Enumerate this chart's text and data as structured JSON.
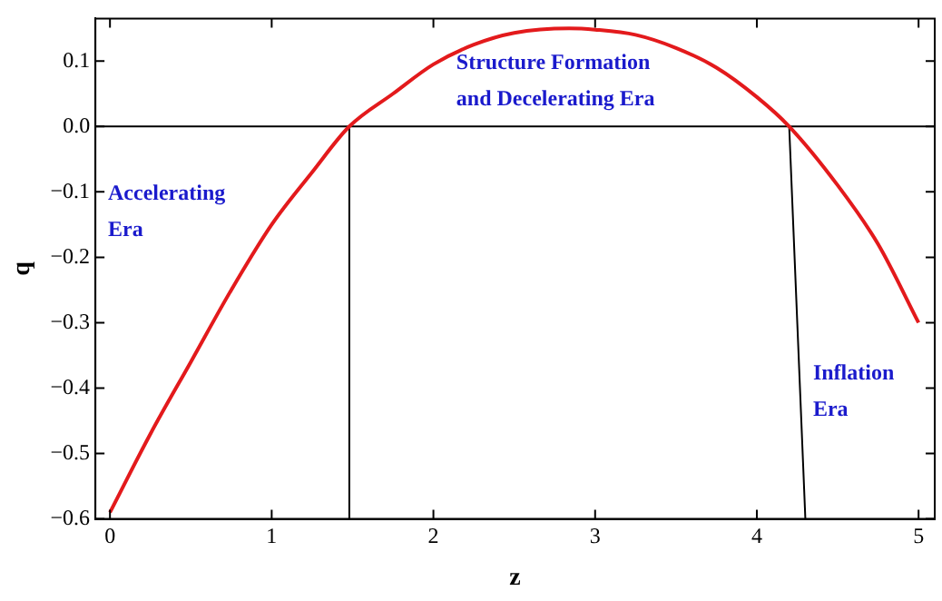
{
  "chart_data": {
    "type": "line",
    "xlabel": "z",
    "ylabel": "q",
    "xlim": [
      -0.09,
      5.1
    ],
    "ylim": [
      -0.6,
      0.165
    ],
    "xticks": [
      0,
      1,
      2,
      3,
      4,
      5
    ],
    "yticks": [
      {
        "value": -0.6,
        "label": "−0.6"
      },
      {
        "value": -0.5,
        "label": "−0.5"
      },
      {
        "value": -0.4,
        "label": "−0.4"
      },
      {
        "value": -0.3,
        "label": "−0.3"
      },
      {
        "value": -0.2,
        "label": "−0.2"
      },
      {
        "value": -0.1,
        "label": "−0.1"
      },
      {
        "value": 0,
        "label": "0.0"
      },
      {
        "value": 0.1,
        "label": "0.1"
      }
    ],
    "grid": false,
    "legend": false,
    "series": [
      {
        "color": "#e31a1c",
        "x": [
          0,
          0.25,
          0.5,
          0.75,
          1,
          1.25,
          1.48,
          1.75,
          2,
          2.25,
          2.5,
          2.84,
          3,
          3.25,
          3.5,
          3.75,
          4,
          4.2,
          4.5,
          4.75,
          5
        ],
        "values": [
          -0.59,
          -0.47,
          -0.36,
          -0.25,
          -0.15,
          -0.07,
          0,
          0.05,
          0.095,
          0.125,
          0.143,
          0.15,
          0.148,
          0.14,
          0.12,
          0.09,
          0.045,
          0,
          -0.09,
          -0.18,
          -0.3
        ]
      },
      {
        "color": "#000000",
        "x": [
          1.48,
          1.48
        ],
        "values": [
          0,
          -0.6
        ]
      },
      {
        "color": "#000000",
        "x": [
          4.2,
          4.3
        ],
        "values": [
          0,
          -0.6
        ]
      }
    ],
    "ref_lines": [
      {
        "axis": "y",
        "value": 0,
        "color": "#000000"
      }
    ],
    "annotations": [
      "Accelerating\nEra",
      "Structure Formation\nand Decelerating Era",
      "Inflation\nEra"
    ]
  }
}
